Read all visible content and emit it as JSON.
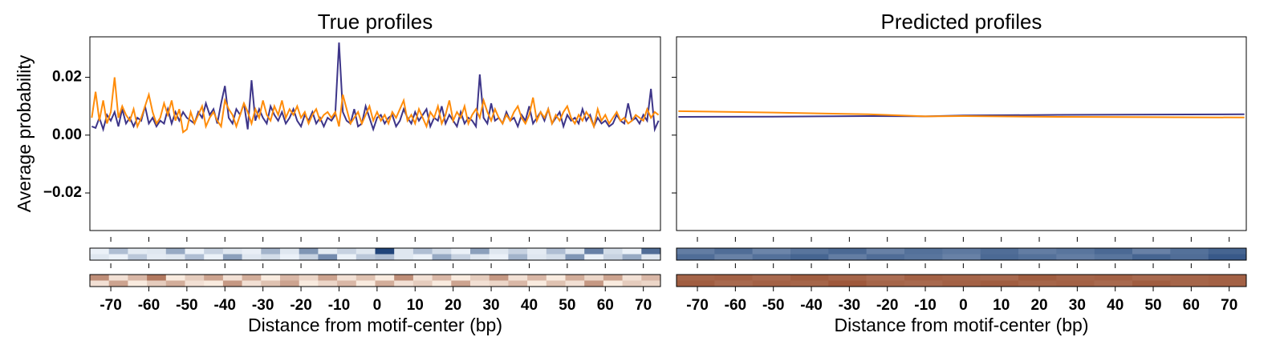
{
  "chart_data": [
    {
      "type": "line",
      "title": "True profiles",
      "xlabel": "Distance from motif-center (bp)",
      "ylabel": "Average probability",
      "xlim": [
        -75.5,
        74.5
      ],
      "ylim": [
        -0.033,
        0.034
      ],
      "xticks": [
        -70,
        -60,
        -50,
        -40,
        -30,
        -20,
        -10,
        0,
        10,
        20,
        30,
        40,
        50,
        60,
        70
      ],
      "yticks": [
        {
          "value": -0.02,
          "label": "−0.02"
        },
        {
          "value": 0,
          "label": "0.00"
        },
        0.02
      ],
      "x": [
        -75,
        -74,
        -73,
        -72,
        -71,
        -70,
        -69,
        -68,
        -67,
        -66,
        -65,
        -64,
        -63,
        -62,
        -61,
        -60,
        -59,
        -58,
        -57,
        -56,
        -55,
        -54,
        -53,
        -52,
        -51,
        -50,
        -49,
        -48,
        -47,
        -46,
        -45,
        -44,
        -43,
        -42,
        -41,
        -40,
        -39,
        -38,
        -37,
        -36,
        -35,
        -34,
        -33,
        -32,
        -31,
        -30,
        -29,
        -28,
        -27,
        -26,
        -25,
        -24,
        -23,
        -22,
        -21,
        -20,
        -19,
        -18,
        -17,
        -16,
        -15,
        -14,
        -13,
        -12,
        -11,
        -10,
        -9,
        -8,
        -7,
        -6,
        -5,
        -4,
        -3,
        -2,
        -1,
        0,
        1,
        2,
        3,
        4,
        5,
        6,
        7,
        8,
        9,
        10,
        11,
        12,
        13,
        14,
        15,
        16,
        17,
        18,
        19,
        20,
        21,
        22,
        23,
        24,
        25,
        26,
        27,
        28,
        29,
        30,
        31,
        32,
        33,
        34,
        35,
        36,
        37,
        38,
        39,
        40,
        41,
        42,
        43,
        44,
        45,
        46,
        47,
        48,
        49,
        50,
        51,
        52,
        53,
        54,
        55,
        56,
        57,
        58,
        59,
        60,
        61,
        62,
        63,
        64,
        65,
        66,
        67,
        68,
        69,
        70,
        71,
        72,
        73,
        74
      ],
      "series": [
        {
          "color": "#3d3589",
          "values": [
            0.003,
            0.0025,
            0.006,
            0.002,
            0.007,
            0.005,
            0.008,
            0.003,
            0.009,
            0.004,
            0.006,
            0.003,
            0.006,
            0.005,
            0.01,
            0.004,
            0.006,
            0.003,
            0.005,
            0.004,
            0.009,
            0.004,
            0.008,
            0.005,
            0.008,
            0.006,
            0.005,
            0.004,
            0.008,
            0.006,
            0.011,
            0.007,
            0.009,
            0.004,
            0.011,
            0.017,
            0.006,
            0.004,
            0.009,
            0.007,
            0.011,
            0.002,
            0.019,
            0.005,
            0.009,
            0.006,
            0.004,
            0.01,
            0.007,
            0.005,
            0.008,
            0.004,
            0.006,
            0.009,
            0.005,
            0.003,
            0.007,
            0.005,
            0.008,
            0.004,
            0.006,
            0.003,
            0.006,
            0.005,
            0.007,
            0.032,
            0.008,
            0.005,
            0.004,
            0.009,
            0.003,
            0.004,
            0.01,
            0.006,
            0.002,
            0.006,
            0.007,
            0.004,
            0.006,
            0.007,
            0.003,
            0.005,
            0.009,
            0.006,
            0.004,
            0.008,
            0.005,
            0.007,
            0.009,
            0.003,
            0.006,
            0.005,
            0.01,
            0.004,
            0.007,
            0.005,
            0.003,
            0.008,
            0.004,
            0.006,
            0.005,
            0.003,
            0.021,
            0.006,
            0.004,
            0.011,
            0.005,
            0.006,
            0.004,
            0.008,
            0.005,
            0.006,
            0.003,
            0.007,
            0.005,
            0.01,
            0.004,
            0.006,
            0.008,
            0.005,
            0.009,
            0.004,
            0.006,
            0.008,
            0.003,
            0.007,
            0.005,
            0.006,
            0.004,
            0.009,
            0.005,
            0.007,
            0.003,
            0.006,
            0.004,
            0.005,
            0.003,
            0.004,
            0.007,
            0.005,
            0.004,
            0.011,
            0.005,
            0.006,
            0.004,
            0.007,
            0.005,
            0.016,
            0.002,
            0.005
          ]
        },
        {
          "color": "#ff8c0a",
          "values": [
            0.006,
            0.015,
            0.005,
            0.012,
            0.004,
            0.008,
            0.02,
            0.006,
            0.01,
            0.007,
            0.005,
            0.009,
            0.003,
            0.006,
            0.01,
            0.014,
            0.008,
            0.004,
            0.006,
            0.011,
            0.007,
            0.012,
            0.005,
            0.009,
            0.001,
            0.002,
            0.008,
            0.004,
            0.007,
            0.01,
            0.003,
            0.006,
            0.008,
            0.005,
            0.003,
            0.012,
            0.009,
            0.007,
            0.003,
            0.007,
            0.011,
            0.008,
            0.004,
            0.009,
            0.006,
            0.012,
            0.007,
            0.005,
            0.01,
            0.007,
            0.012,
            0.006,
            0.009,
            0.007,
            0.01,
            0.006,
            0.008,
            0.004,
            0.007,
            0.009,
            0.005,
            0.007,
            0.008,
            0.006,
            0.008,
            0.003,
            0.014,
            0.009,
            0.004,
            0.006,
            0.008,
            0.004,
            0.007,
            0.01,
            0.005,
            0.008,
            0.005,
            0.007,
            0.004,
            0.008,
            0.006,
            0.009,
            0.012,
            0.005,
            0.007,
            0.004,
            0.009,
            0.006,
            0.003,
            0.008,
            0.006,
            0.01,
            0.004,
            0.007,
            0.012,
            0.005,
            0.008,
            0.006,
            0.01,
            0.004,
            0.007,
            0.009,
            0.006,
            0.012,
            0.008,
            0.005,
            0.009,
            0.006,
            0.004,
            0.007,
            0.005,
            0.008,
            0.01,
            0.006,
            0.004,
            0.007,
            0.013,
            0.005,
            0.008,
            0.006,
            0.009,
            0.004,
            0.007,
            0.005,
            0.008,
            0.01,
            0.006,
            0.004,
            0.007,
            0.005,
            0.008,
            0.006,
            0.003,
            0.009,
            0.005,
            0.007,
            0.004,
            0.006,
            0.008,
            0.005,
            0.006,
            0.004,
            0.005,
            0.007,
            0.006,
            0.005,
            0.009,
            0.006,
            0.008,
            0.007
          ]
        }
      ],
      "heatmaps": [
        {
          "type": "heatmap",
          "low": "#f7fbff",
          "high": "#08306b",
          "z": [
            [
              0.05,
              0.3,
              0.08,
              0.1,
              0.4,
              0.05,
              0.2,
              0.1,
              0.06,
              0.35,
              0.1,
              0.5,
              0.08,
              0.2,
              0.1,
              0.9,
              0.1,
              0.3,
              0.15,
              0.05,
              0.45,
              0.1,
              0.2,
              0.08,
              0.3,
              0.1,
              0.6,
              0.15,
              0.05,
              0.7
            ],
            [
              0.1,
              0.05,
              0.25,
              0.08,
              0.1,
              0.3,
              0.05,
              0.45,
              0.1,
              0.15,
              0.05,
              0.2,
              0.55,
              0.05,
              0.25,
              0.3,
              0.1,
              0.05,
              0.4,
              0.2,
              0.1,
              0.05,
              0.35,
              0.1,
              0.15,
              0.5,
              0.05,
              0.2,
              0.4,
              0.1
            ]
          ]
        },
        {
          "type": "heatmap",
          "low": "#fff5eb",
          "high": "#7f2704",
          "z": [
            [
              0.5,
              0.1,
              0.3,
              0.6,
              0.05,
              0.2,
              0.4,
              0.1,
              0.35,
              0.05,
              0.3,
              0.15,
              0.4,
              0.1,
              0.25,
              0.05,
              0.5,
              0.1,
              0.3,
              0.05,
              0.2,
              0.45,
              0.1,
              0.3,
              0.05,
              0.35,
              0.15,
              0.4,
              0.1,
              0.3
            ],
            [
              0.1,
              0.4,
              0.05,
              0.2,
              0.35,
              0.1,
              0.05,
              0.45,
              0.1,
              0.25,
              0.4,
              0.05,
              0.15,
              0.3,
              0.05,
              0.35,
              0.1,
              0.2,
              0.05,
              0.4,
              0.1,
              0.15,
              0.3,
              0.05,
              0.25,
              0.1,
              0.45,
              0.05,
              0.2,
              0.15
            ]
          ]
        }
      ]
    },
    {
      "type": "line",
      "title": "Predicted profiles",
      "xlabel": "Distance from motif-center (bp)",
      "xlim": [
        -75.5,
        74.5
      ],
      "ylim": [
        -0.033,
        0.034
      ],
      "xticks": [
        -70,
        -60,
        -50,
        -40,
        -30,
        -20,
        -10,
        0,
        10,
        20,
        30,
        40,
        50,
        60,
        70
      ],
      "x": [
        -75,
        -50,
        -25,
        -10,
        0,
        25,
        50,
        74
      ],
      "series": [
        {
          "color": "#3d3589",
          "values": [
            0.0063,
            0.0064,
            0.0066,
            0.0065,
            0.0068,
            0.007,
            0.0071,
            0.0072
          ]
        },
        {
          "color": "#ff8c0a",
          "values": [
            0.0083,
            0.0078,
            0.0072,
            0.0065,
            0.0066,
            0.0063,
            0.0062,
            0.0061
          ]
        }
      ],
      "heatmaps": [
        {
          "type": "heatmap",
          "low": "#f7fbff",
          "high": "#08306b",
          "z": [
            [
              0.62,
              0.7,
              0.58,
              0.66,
              0.72,
              0.6,
              0.68,
              0.64,
              0.7,
              0.62,
              0.66,
              0.72,
              0.6,
              0.68,
              0.74
            ],
            [
              0.7,
              0.6,
              0.68,
              0.74,
              0.62,
              0.7,
              0.66,
              0.6,
              0.72,
              0.68,
              0.62,
              0.66,
              0.74,
              0.7,
              0.8
            ]
          ]
        },
        {
          "type": "heatmap",
          "low": "#fff5eb",
          "high": "#7f2704",
          "z": [
            [
              0.7,
              0.72,
              0.68,
              0.74,
              0.7,
              0.66,
              0.72,
              0.7,
              0.68,
              0.74,
              0.7,
              0.72,
              0.68,
              0.7,
              0.72
            ],
            [
              0.74,
              0.68,
              0.72,
              0.7,
              0.76,
              0.7,
              0.68,
              0.72,
              0.74,
              0.7,
              0.72,
              0.68,
              0.74,
              0.7,
              0.72
            ]
          ]
        }
      ]
    }
  ]
}
